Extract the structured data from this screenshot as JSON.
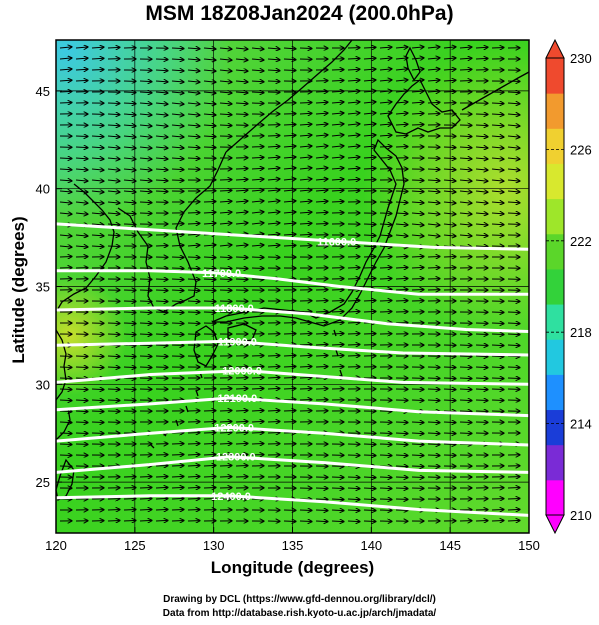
{
  "title": "MSM 18Z08Jan2024 (200.0hPa)",
  "map": {
    "xlabel": "Longitude (degrees)",
    "ylabel": "Latitude  (degrees)",
    "x_ticks": [
      "120",
      "125",
      "130",
      "135",
      "140",
      "145",
      "150"
    ],
    "y_ticks": [
      "25",
      "30",
      "35",
      "40",
      "45"
    ],
    "lon_range": [
      120,
      150
    ],
    "lat_range": [
      22.4,
      47.6
    ],
    "contour_labels": [
      {
        "text": "11600.0",
        "lon": 137.8,
        "lat": 37.3
      },
      {
        "text": "11700.0",
        "lon": 130.5,
        "lat": 35.7
      },
      {
        "text": "11800.0",
        "lon": 131.3,
        "lat": 33.9
      },
      {
        "text": "11900.0",
        "lon": 131.5,
        "lat": 32.2
      },
      {
        "text": "12000.0",
        "lon": 131.8,
        "lat": 30.7
      },
      {
        "text": "12100.0",
        "lon": 131.5,
        "lat": 29.3
      },
      {
        "text": "12200.0",
        "lon": 131.3,
        "lat": 27.8
      },
      {
        "text": "12300.0",
        "lon": 131.4,
        "lat": 26.3
      },
      {
        "text": "12400.0",
        "lon": 131.1,
        "lat": 24.3
      }
    ]
  },
  "colorbar": {
    "labels": [
      "230",
      "226",
      "222",
      "218",
      "214",
      "210"
    ],
    "min": 210,
    "max": 230,
    "colors": [
      "#ff00ff",
      "#7a2bd6",
      "#1a3dd8",
      "#1e90ff",
      "#22c8e0",
      "#2fe0a0",
      "#33d23a",
      "#5bd62a",
      "#9ee62a",
      "#d8e82e",
      "#f0d030",
      "#f29a2e",
      "#ef4a2e"
    ]
  },
  "credits": {
    "line1": "Drawing by DCL (https://www.gfd-dennou.org/library/dcl/)",
    "line2": "Data from http://database.rish.kyoto-u.ac.jp/arch/jmadata/"
  }
}
